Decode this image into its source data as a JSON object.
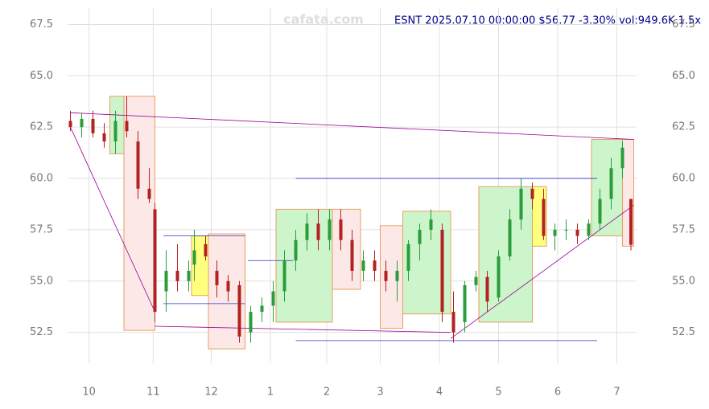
{
  "chart_data": {
    "type": "candlestick",
    "title": "ESNT 2025.07.10 00:00:00 $56.77 -3.30% vol:949.6K 1.5x",
    "watermark": "cafata.com",
    "xlim": [
      -1,
      201
    ],
    "ylim": [
      51.0,
      68.3
    ],
    "xticks": [
      {
        "value": 6.6,
        "label": "10"
      },
      {
        "value": 29.4,
        "label": "11"
      },
      {
        "value": 50,
        "label": "12"
      },
      {
        "value": 71,
        "label": "1"
      },
      {
        "value": 91,
        "label": "2"
      },
      {
        "value": 110,
        "label": "3"
      },
      {
        "value": 131,
        "label": "4"
      },
      {
        "value": 152,
        "label": "5"
      },
      {
        "value": 173,
        "label": "6"
      },
      {
        "value": 194,
        "label": "7"
      }
    ],
    "yticks": [
      {
        "value": 52.5,
        "label": "52.5"
      },
      {
        "value": 55.0,
        "label": "55.0"
      },
      {
        "value": 57.5,
        "label": "57.5"
      },
      {
        "value": 60.0,
        "label": "60.0"
      },
      {
        "value": 62.5,
        "label": "62.5"
      },
      {
        "value": 65.0,
        "label": "65.0"
      },
      {
        "value": 67.5,
        "label": "67.5"
      }
    ],
    "grid": true,
    "up_color": "#2a9d3a",
    "down_color": "#b22222",
    "x": [
      0,
      4,
      8,
      12,
      16,
      20,
      24,
      28,
      30,
      34,
      38,
      42,
      44,
      48,
      52,
      56,
      60,
      64,
      68,
      72,
      76,
      80,
      84,
      88,
      92,
      96,
      100,
      104,
      108,
      112,
      116,
      120,
      124,
      128,
      132,
      136,
      140,
      144,
      148,
      152,
      156,
      160,
      164,
      168,
      172,
      176,
      180,
      184,
      188,
      192,
      196,
      199
    ],
    "open": [
      62.8,
      62.5,
      62.9,
      62.2,
      61.8,
      62.8,
      61.8,
      59.5,
      58.5,
      54.5,
      55.5,
      55.0,
      55.8,
      56.8,
      55.5,
      55.0,
      54.8,
      52.5,
      53.5,
      53.8,
      54.5,
      56.0,
      57.0,
      57.8,
      57.0,
      58.0,
      57.0,
      55.5,
      56.0,
      55.5,
      55.0,
      55.5,
      56.8,
      57.5,
      57.5,
      53.5,
      53.0,
      54.8,
      55.2,
      54.2,
      56.2,
      58.0,
      59.5,
      59.0,
      57.2,
      57.5,
      57.5,
      57.2,
      57.8,
      59.0,
      60.5,
      59.0
    ],
    "high": [
      63.3,
      63.2,
      63.3,
      62.7,
      63.3,
      64.0,
      62.3,
      60.5,
      58.8,
      56.5,
      56.8,
      56.0,
      57.5,
      57.2,
      56.0,
      55.3,
      55.0,
      53.8,
      54.2,
      55.0,
      56.5,
      57.5,
      58.3,
      58.5,
      58.5,
      58.5,
      57.5,
      56.5,
      56.5,
      56.0,
      56.0,
      57.0,
      57.8,
      58.5,
      57.8,
      54.5,
      55.0,
      55.5,
      55.5,
      56.5,
      58.5,
      60.0,
      59.8,
      59.5,
      57.8,
      58.0,
      57.8,
      58.0,
      59.5,
      61.0,
      61.8,
      59.0
    ],
    "low": [
      62.3,
      62.0,
      62.0,
      61.5,
      61.2,
      62.0,
      59.0,
      58.8,
      53.0,
      53.5,
      54.5,
      54.5,
      55.0,
      56.0,
      54.2,
      54.0,
      52.0,
      52.0,
      53.0,
      53.0,
      54.0,
      55.5,
      56.5,
      56.5,
      56.5,
      56.5,
      55.0,
      55.0,
      55.0,
      54.5,
      54.0,
      55.0,
      56.0,
      57.0,
      53.0,
      52.0,
      52.5,
      54.5,
      53.5,
      54.0,
      56.0,
      57.5,
      58.5,
      57.0,
      56.5,
      57.0,
      56.8,
      57.0,
      57.5,
      58.5,
      60.0,
      56.5
    ],
    "close": [
      62.5,
      62.9,
      62.2,
      61.8,
      62.8,
      62.3,
      59.5,
      59.0,
      53.5,
      55.5,
      55.0,
      55.5,
      56.5,
      56.2,
      54.8,
      54.5,
      52.3,
      53.5,
      53.8,
      54.5,
      56.0,
      57.0,
      57.8,
      57.0,
      58.0,
      57.0,
      55.5,
      56.0,
      55.5,
      55.0,
      55.5,
      56.8,
      57.5,
      58.0,
      53.5,
      52.5,
      54.8,
      55.2,
      54.0,
      56.2,
      58.0,
      59.5,
      59.0,
      57.2,
      57.5,
      57.5,
      57.2,
      57.8,
      59.0,
      60.5,
      61.5,
      56.77
    ],
    "zones": [
      {
        "x": [
          14,
          19
        ],
        "y": [
          61.2,
          64.0
        ],
        "color": "#ccf5cc"
      },
      {
        "x": [
          19,
          30
        ],
        "y": [
          52.6,
          64.0
        ],
        "color": "#fde8e8"
      },
      {
        "x": [
          43,
          49
        ],
        "y": [
          54.3,
          57.2
        ],
        "color": "#ffff80"
      },
      {
        "x": [
          49,
          62
        ],
        "y": [
          51.7,
          57.3
        ],
        "color": "#fde8e8"
      },
      {
        "x": [
          73,
          93
        ],
        "y": [
          53.0,
          58.5
        ],
        "color": "#ccf5cc"
      },
      {
        "x": [
          93,
          103
        ],
        "y": [
          54.6,
          58.5
        ],
        "color": "#fde8e8"
      },
      {
        "x": [
          110,
          118
        ],
        "y": [
          52.7,
          57.7
        ],
        "color": "#fde8e8"
      },
      {
        "x": [
          118,
          135
        ],
        "y": [
          53.4,
          58.4
        ],
        "color": "#ccf5cc"
      },
      {
        "x": [
          145,
          164
        ],
        "y": [
          53.0,
          59.6
        ],
        "color": "#ccf5cc"
      },
      {
        "x": [
          164,
          169
        ],
        "y": [
          56.7,
          59.6
        ],
        "color": "#ffff80"
      },
      {
        "x": [
          185,
          196
        ],
        "y": [
          57.2,
          61.9
        ],
        "color": "#ccf5cc"
      },
      {
        "x": [
          196,
          200
        ],
        "y": [
          56.7,
          61.9
        ],
        "color": "#fde8e8"
      }
    ],
    "lines": [
      {
        "x": [
          0,
          200
        ],
        "y": [
          63.2,
          61.9
        ],
        "color": "#990099"
      },
      {
        "x": [
          0,
          30
        ],
        "y": [
          62.5,
          53.5
        ],
        "color": "#990099"
      },
      {
        "x": [
          30,
          135
        ],
        "y": [
          52.8,
          52.5
        ],
        "color": "#990099"
      },
      {
        "x": [
          135,
          200
        ],
        "y": [
          52.2,
          58.7
        ],
        "color": "#990099"
      },
      {
        "x": [
          33,
          62
        ],
        "y": [
          57.2,
          57.2
        ],
        "color": "#3333cc"
      },
      {
        "x": [
          33,
          62
        ],
        "y": [
          53.9,
          53.9
        ],
        "color": "#3333cc"
      },
      {
        "x": [
          63,
          79
        ],
        "y": [
          56.0,
          56.0
        ],
        "color": "#3333cc"
      },
      {
        "x": [
          80,
          187
        ],
        "y": [
          60.0,
          60.0
        ],
        "color": "#3333cc"
      },
      {
        "x": [
          80,
          187
        ],
        "y": [
          52.1,
          52.1
        ],
        "color": "#3333cc"
      }
    ]
  }
}
